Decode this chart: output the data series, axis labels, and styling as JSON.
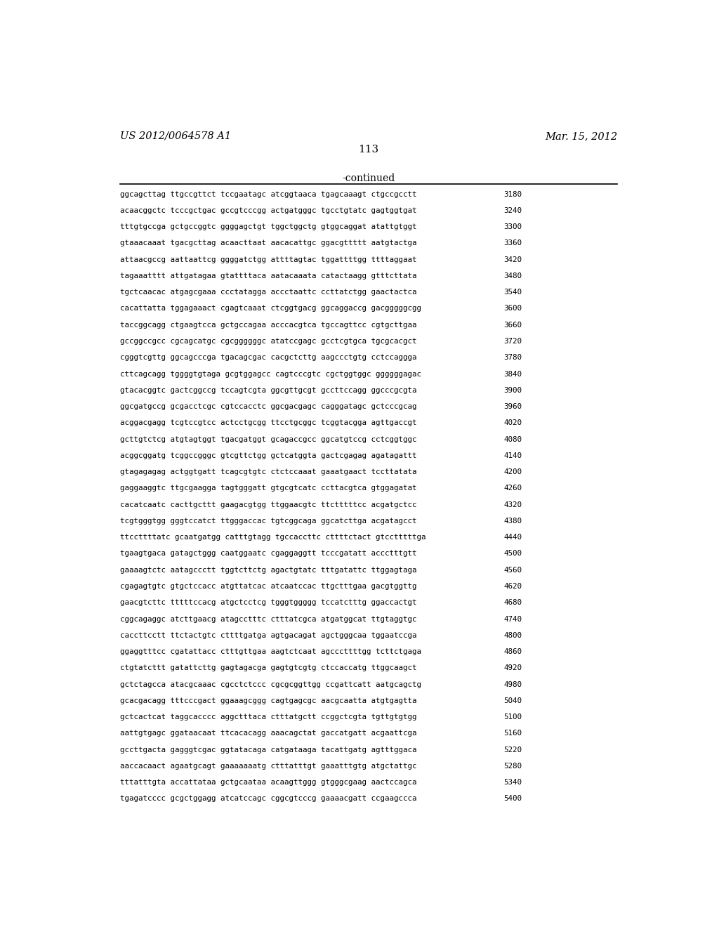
{
  "header_left": "US 2012/0064578 A1",
  "header_right": "Mar. 15, 2012",
  "page_number": "113",
  "continued_label": "-continued",
  "background_color": "#ffffff",
  "text_color": "#000000",
  "sequences": [
    [
      "ggcagcttag ttgccgttct tccgaatagc atcggtaaca tgagcaaagt ctgccgcctt",
      "3180"
    ],
    [
      "acaacggctc tcccgctgac gccgtcccgg actgatgggc tgcctgtatc gagtggtgat",
      "3240"
    ],
    [
      "tttgtgccga gctgccggtc ggggagctgt tggctggctg gtggcaggat atattgtggt",
      "3300"
    ],
    [
      "gtaaacaaat tgacgcttag acaacttaat aacacattgc ggacgttttt aatgtactga",
      "3360"
    ],
    [
      "attaacgccg aattaattcg ggggatctgg attttagtac tggattttgg ttttaggaat",
      "3420"
    ],
    [
      "tagaaatttt attgatagaa gtattttaca aatacaaata catactaagg gtttcttata",
      "3480"
    ],
    [
      "tgctcaacac atgagcgaaa ccctatagga accctaattc ccttatctgg gaactactca",
      "3540"
    ],
    [
      "cacattatta tggagaaact cgagtcaaat ctcggtgacg ggcaggaccg gacgggggcgg",
      "3600"
    ],
    [
      "taccggcagg ctgaagtcca gctgccagaa acccacgtca tgccagttcc cgtgcttgaa",
      "3660"
    ],
    [
      "gccggccgcc cgcagcatgc cgcggggggc atatccgagc gcctcgtgca tgcgcacgct",
      "3720"
    ],
    [
      "cgggtcgttg ggcagcccga tgacagcgac cacgctcttg aagccctgtg cctccaggga",
      "3780"
    ],
    [
      "cttcagcagg tggggtgtaga gcgtggagcc cagtcccgtc cgctggtggc ggggggagac",
      "3840"
    ],
    [
      "gtacacggtc gactcggccg tccagtcgta ggcgttgcgt gccttccagg ggcccgcgta",
      "3900"
    ],
    [
      "ggcgatgccg gcgacctcgc cgtccacctc ggcgacgagc cagggatagc gctcccgcag",
      "3960"
    ],
    [
      "acggacgagg tcgtccgtcc actcctgcgg ttcctgcggc tcggtacgga agttgaccgt",
      "4020"
    ],
    [
      "gcttgtctcg atgtagtggt tgacgatggt gcagaccgcc ggcatgtccg cctcggtggc",
      "4080"
    ],
    [
      "acggcggatg tcggccgggc gtcgttctgg gctcatggta gactcgagag agatagattt",
      "4140"
    ],
    [
      "gtagagagag actggtgatt tcagcgtgtc ctctccaaat gaaatgaact tccttatata",
      "4200"
    ],
    [
      "gaggaaggtc ttgcgaagga tagtgggatt gtgcgtcatc ccttacgtca gtggagatat",
      "4260"
    ],
    [
      "cacatcaatc cacttgcttt gaagacgtgg ttggaacgtc ttctttttcc acgatgctcc",
      "4320"
    ],
    [
      "tcgtgggtgg gggtccatct ttgggaccac tgtcggcaga ggcatcttga acgatagcct",
      "4380"
    ],
    [
      "ttccttttatc gcaatgatgg catttgtagg tgccaccttc cttttctact gtcctttttga",
      "4440"
    ],
    [
      "tgaagtgaca gatagctggg caatggaatc cgaggaggtt tcccgatatt accctttgtt",
      "4500"
    ],
    [
      "gaaaagtctc aatagccctt tggtcttctg agactgtatc tttgatattc ttggagtaga",
      "4560"
    ],
    [
      "cgagagtgtc gtgctccacc atgttatcac atcaatccac ttgctttgaa gacgtggttg",
      "4620"
    ],
    [
      "gaacgtcttc tttttccacg atgctcctcg tgggtggggg tccatctttg ggaccactgt",
      "4680"
    ],
    [
      "cggcagaggc atcttgaacg atagcctttc ctttatcgca atgatggcat ttgtaggtgc",
      "4740"
    ],
    [
      "caccttcctt ttctactgtc cttttgatga agtgacagat agctgggcaa tggaatccga",
      "4800"
    ],
    [
      "ggaggtttcc cgatattacc ctttgttgaa aagtctcaat agcccttttgg tcttctgaga",
      "4860"
    ],
    [
      "ctgtatcttt gatattcttg gagtagacga gagtgtcgtg ctccaccatg ttggcaagct",
      "4920"
    ],
    [
      "gctctagcca atacgcaaac cgcctctccc cgcgcggttgg ccgattcatt aatgcagctg",
      "4980"
    ],
    [
      "gcacgacagg tttcccgact ggaaagcggg cagtgagcgc aacgcaatta atgtgagtta",
      "5040"
    ],
    [
      "gctcactcat taggcacccc aggctttaca ctttatgctt ccggctcgta tgttgtgtgg",
      "5100"
    ],
    [
      "aattgtgagc ggataacaat ttcacacagg aaacagctat gaccatgatt acgaattcga",
      "5160"
    ],
    [
      "gccttgacta gagggtcgac ggtatacaga catgataaga tacattgatg agtttggaca",
      "5220"
    ],
    [
      "aaccacaact agaatgcagt gaaaaaaatg ctttatttgt gaaatttgtg atgctattgc",
      "5280"
    ],
    [
      "tttatttgta accattataa gctgcaataa acaagttggg gtgggcgaag aactccagca",
      "5340"
    ],
    [
      "tgagatcccc gcgctggagg atcatccagc cggcgtcccg gaaaacgatt ccgaagccca",
      "5400"
    ]
  ]
}
